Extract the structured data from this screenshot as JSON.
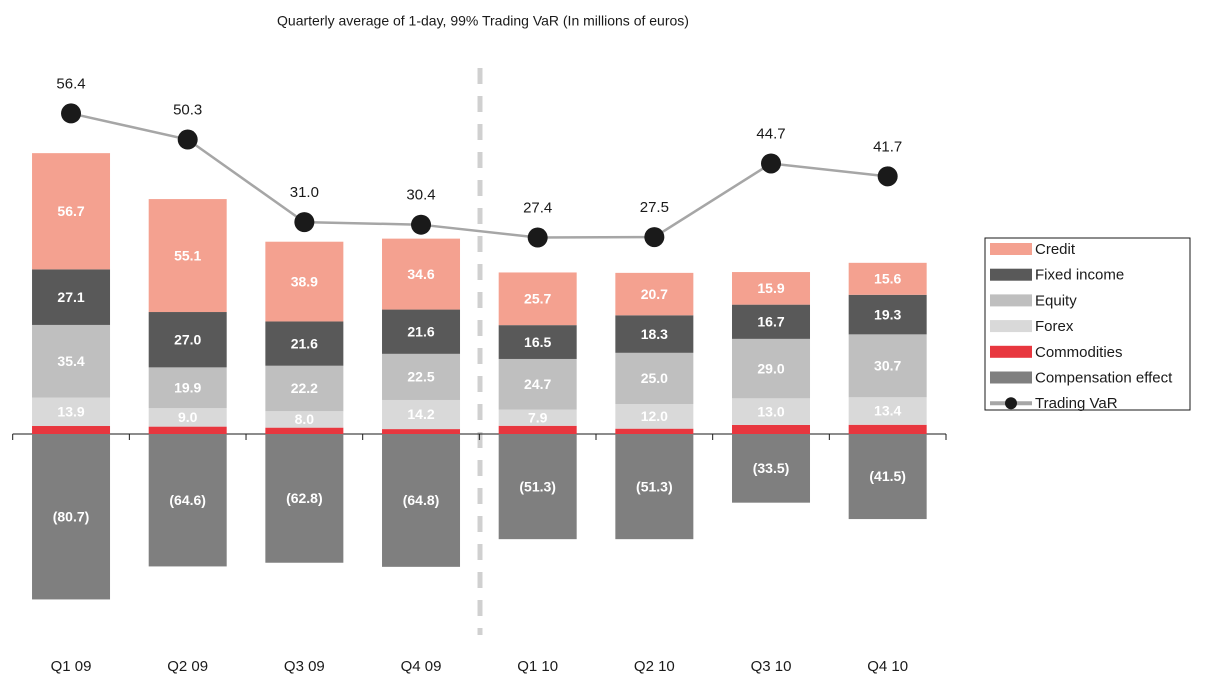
{
  "chart_data": {
    "type": "bar",
    "title": "Quarterly average of 1-day, 99% Trading VaR (In millions of euros)",
    "categories": [
      "Q1 09",
      "Q2 09",
      "Q3 09",
      "Q4 09",
      "Q1 10",
      "Q2 10",
      "Q3 10",
      "Q4 10"
    ],
    "ylim": [
      -100,
      190
    ],
    "y2lim": [
      -66.4,
      72.5
    ],
    "legend": "right",
    "series": [
      {
        "name": "Credit",
        "color": "#f4a190",
        "values": [
          56.7,
          55.1,
          38.9,
          34.6,
          25.7,
          20.7,
          15.9,
          15.6
        ],
        "value_labels": [
          "56.7",
          "55.1",
          "38.9",
          "34.6",
          "25.7",
          "20.7",
          "15.9",
          "15.6"
        ]
      },
      {
        "name": "Fixed income",
        "color": "#595959",
        "values": [
          27.1,
          27.0,
          21.6,
          21.6,
          16.5,
          18.3,
          16.7,
          19.3
        ],
        "value_labels": [
          "27.1",
          "27.0",
          "21.6",
          "21.6",
          "16.5",
          "18.3",
          "16.7",
          "19.3"
        ]
      },
      {
        "name": "Equity",
        "color": "#bfbfbf",
        "values": [
          35.4,
          19.9,
          22.2,
          22.5,
          24.7,
          25.0,
          29.0,
          30.7
        ],
        "value_labels": [
          "35.4",
          "19.9",
          "22.2",
          "22.5",
          "24.7",
          "25.0",
          "29.0",
          "30.7"
        ]
      },
      {
        "name": "Forex",
        "color": "#d9d9d9",
        "values": [
          13.9,
          9.0,
          8.0,
          14.2,
          7.9,
          12.0,
          13.0,
          13.4
        ],
        "value_labels": [
          "13.9",
          "9.0",
          "8.0",
          "14.2",
          "7.9",
          "12.0",
          "13.0",
          "13.4"
        ]
      },
      {
        "name": "Commodities",
        "color": "#e8373f",
        "values": [
          3.9,
          3.6,
          3.1,
          2.4,
          4.0,
          2.6,
          4.4,
          4.5
        ]
      },
      {
        "name": "Compensation effect",
        "color": "#7f7f7f",
        "values": [
          -80.7,
          -64.6,
          -62.8,
          -64.8,
          -51.3,
          -51.3,
          -33.5,
          -41.5
        ],
        "value_labels": [
          "(80.7)",
          "(64.6)",
          "(62.8)",
          "(64.8)",
          "(51.3)",
          "(51.3)",
          "(33.5)",
          "(41.5)"
        ]
      },
      {
        "name": "Trading VaR",
        "type": "line",
        "axis": "y2",
        "color": "#a6a6a6",
        "marker_color": "#1a1a1a",
        "values": [
          56.4,
          50.3,
          31.0,
          30.4,
          27.4,
          27.5,
          44.7,
          41.7
        ],
        "value_labels": [
          "56.4",
          "50.3",
          "31.0",
          "30.4",
          "27.4",
          "27.5",
          "44.7",
          "41.7"
        ]
      }
    ]
  }
}
